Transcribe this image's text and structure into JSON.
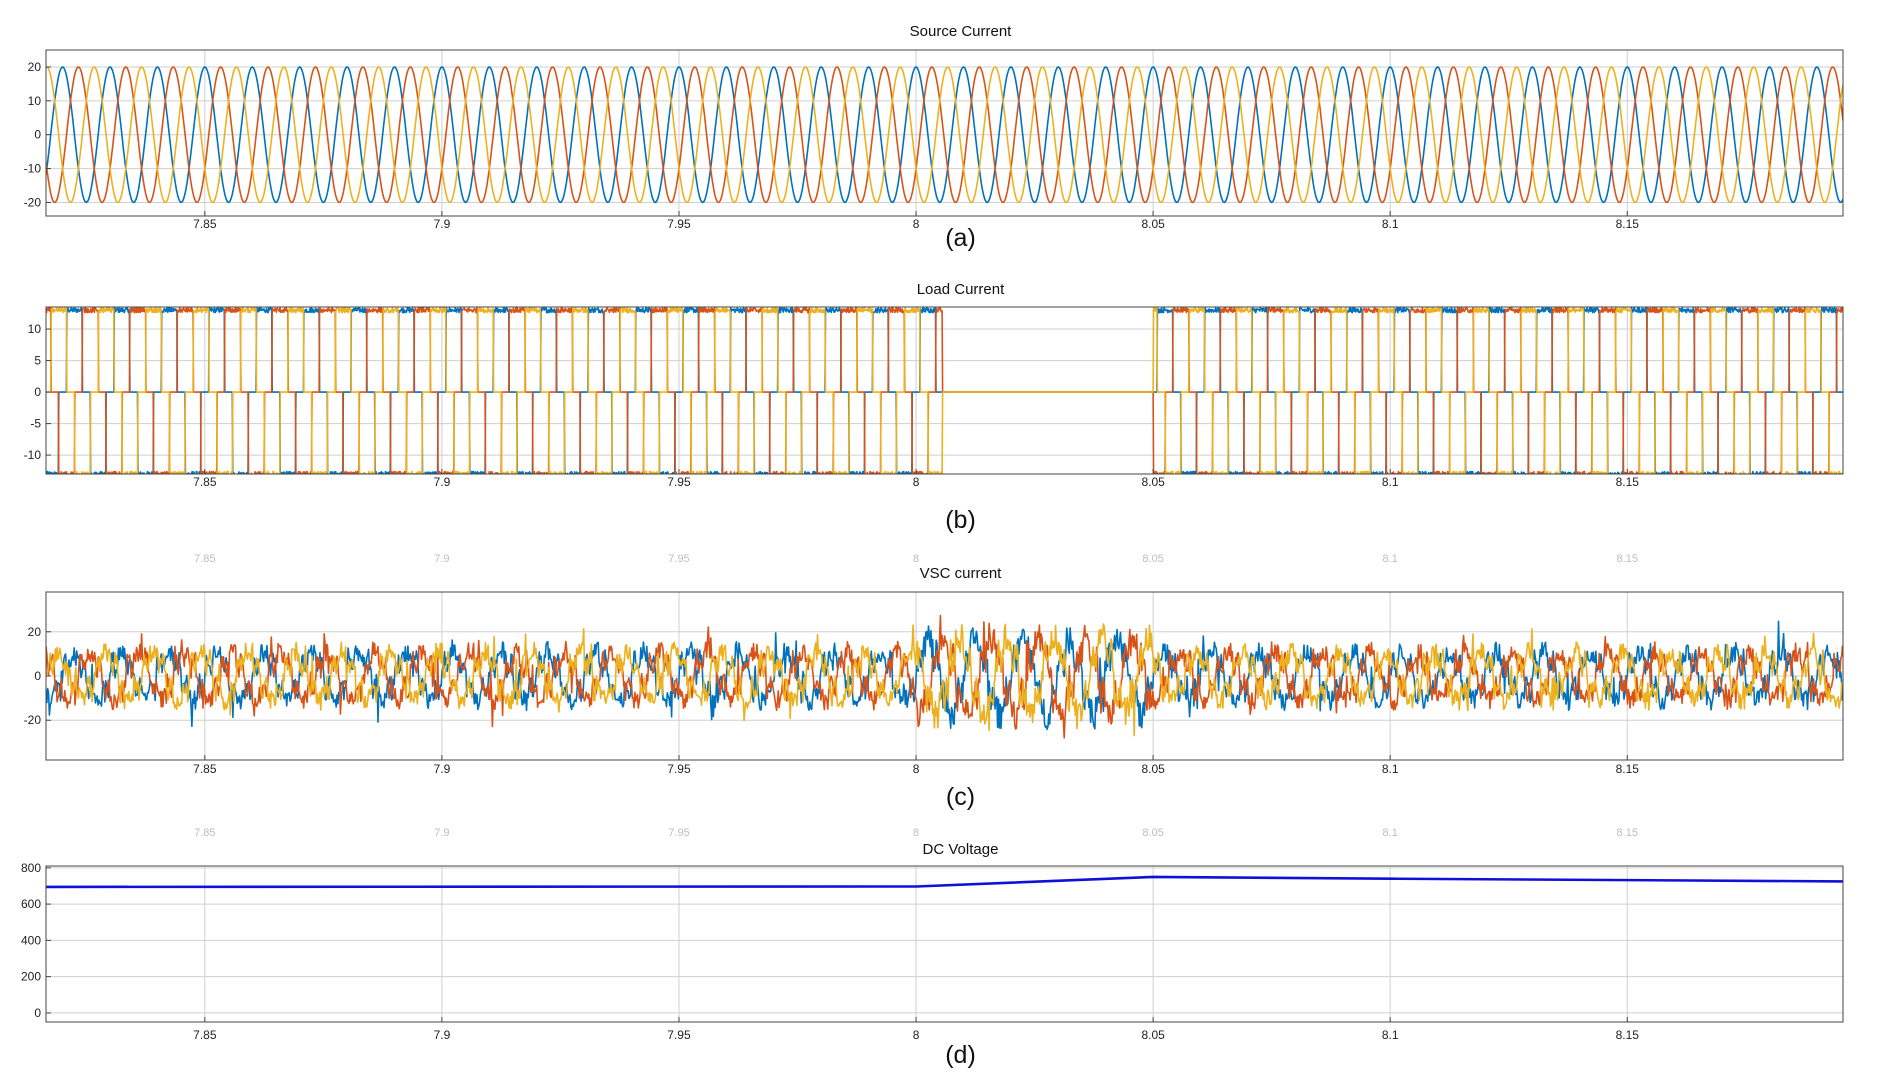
{
  "figure": {
    "x_ticks": [
      7.85,
      7.9,
      7.95,
      8,
      8.05,
      8.1,
      8.15
    ],
    "x_tick_labels": [
      "7.85",
      "7.9",
      "7.95",
      "8",
      "8.05",
      "8.1",
      "8.15"
    ],
    "x_range": [
      7.8165,
      8.1955
    ],
    "colors": {
      "phase_blue": "#0072BD",
      "phase_red": "#D95319",
      "phase_yellow": "#EDB120",
      "dc_line": "#1010dd",
      "grid": "#cfcfcf"
    }
  },
  "chart_data": [
    {
      "id": "a",
      "type": "line",
      "title": "Source Current",
      "caption": "(a)",
      "xlabel": "",
      "ylabel": "",
      "xlim": [
        7.8165,
        8.1955
      ],
      "ylim": [
        -24,
        25
      ],
      "y_ticks": [
        -20,
        -10,
        0,
        10,
        20
      ],
      "grid": true,
      "waveform": "sine",
      "frequency_hz": 100,
      "amplitude": 20,
      "series": [
        {
          "phase_deg": 90,
          "color": "#0072BD"
        },
        {
          "phase_deg": -30,
          "color": "#D95319"
        },
        {
          "phase_deg": 210,
          "color": "#EDB120"
        }
      ]
    },
    {
      "id": "b",
      "type": "line",
      "title": "Load Current",
      "caption": "(b)",
      "xlabel": "",
      "ylabel": "",
      "xlim": [
        7.8165,
        8.1955
      ],
      "ylim": [
        -13,
        13.5
      ],
      "y_ticks": [
        -10,
        -5,
        0,
        5,
        10
      ],
      "grid": true,
      "waveform": "six-pulse",
      "frequency_hz": 100,
      "amplitude": 13,
      "zero_interval": [
        8.0055,
        8.05
      ],
      "series": [
        {
          "phase_deg": 0,
          "color": "#0072BD"
        },
        {
          "phase_deg": -120,
          "color": "#D95319"
        },
        {
          "phase_deg": 120,
          "color": "#EDB120"
        }
      ]
    },
    {
      "id": "c",
      "type": "line",
      "title": "VSC current",
      "caption": "(c)",
      "xlabel": "",
      "ylabel": "",
      "xlim": [
        7.8165,
        8.1955
      ],
      "ylim": [
        -38,
        38
      ],
      "y_ticks": [
        -20,
        0,
        20
      ],
      "grid": true,
      "waveform": "distorted",
      "frequency_hz": 100,
      "amplitude": 10,
      "disturbance_interval": [
        8.0,
        8.05
      ],
      "series": [
        {
          "phase_deg": 0,
          "color": "#0072BD"
        },
        {
          "phase_deg": -120,
          "color": "#D95319"
        },
        {
          "phase_deg": 120,
          "color": "#EDB120"
        }
      ]
    },
    {
      "id": "d",
      "type": "line",
      "title": "DC Voltage",
      "caption": "(d)",
      "xlabel": "",
      "ylabel": "",
      "xlim": [
        7.8165,
        8.1955
      ],
      "ylim": [
        -50,
        810
      ],
      "y_ticks": [
        0,
        200,
        400,
        600,
        800
      ],
      "grid": true,
      "series": [
        {
          "color": "#1010dd",
          "x": [
            7.8165,
            8.0,
            8.05,
            8.1,
            8.1955
          ],
          "y": [
            695,
            697,
            750,
            740,
            725
          ]
        }
      ]
    }
  ]
}
